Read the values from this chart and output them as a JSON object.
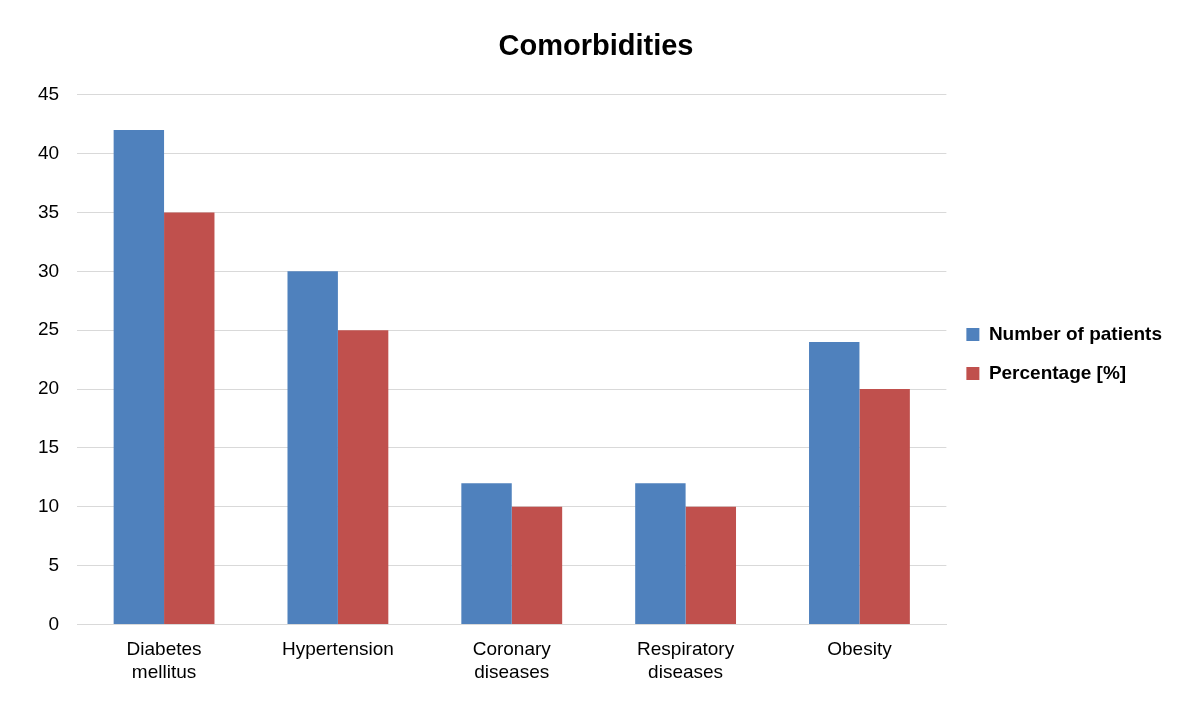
{
  "chart_data": {
    "type": "bar",
    "title": "Comorbidities",
    "categories": [
      "Diabetes mellitus",
      "Hypertension",
      "Coronary diseases",
      "Respiratory diseases",
      "Obesity"
    ],
    "series": [
      {
        "name": "Number of patients",
        "color": "#4f81bd",
        "values": [
          42,
          30,
          12,
          12,
          24
        ]
      },
      {
        "name": "Percentage [%]",
        "color": "#c0504d",
        "values": [
          35,
          25,
          10,
          10,
          20
        ]
      }
    ],
    "ylim": [
      0,
      45
    ],
    "yticks": [
      0,
      5,
      10,
      15,
      20,
      25,
      30,
      35,
      40,
      45
    ],
    "grid": "y",
    "legend": "right"
  }
}
